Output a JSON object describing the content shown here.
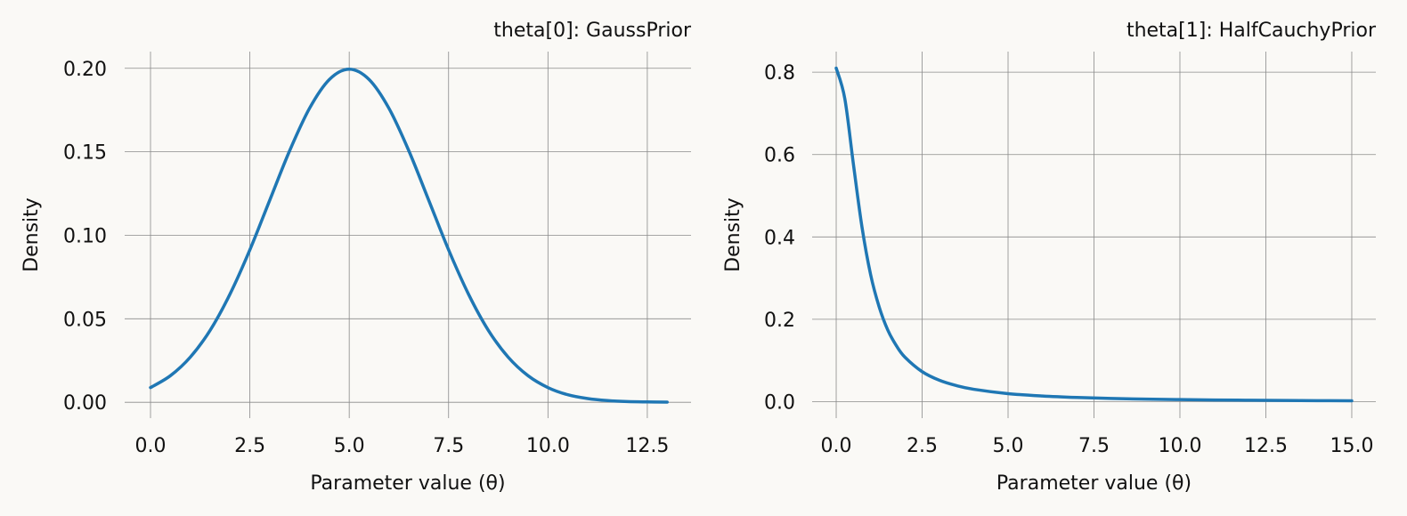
{
  "chart_data": [
    {
      "type": "line",
      "title": "theta[0]: GaussPrior",
      "xlabel": "Parameter value (θ)",
      "ylabel": "Density",
      "xlim": [
        -0.65,
        13.6
      ],
      "ylim": [
        -0.0095,
        0.21
      ],
      "xticks": [
        "0.0",
        "2.5",
        "5.0",
        "7.5",
        "10.0",
        "12.5"
      ],
      "xtick_values": [
        0,
        2.5,
        5,
        7.5,
        10,
        12.5
      ],
      "yticks": [
        "0.00",
        "0.05",
        "0.10",
        "0.15",
        "0.20"
      ],
      "ytick_values": [
        0,
        0.05,
        0.1,
        0.15,
        0.2
      ],
      "grid": true,
      "color": "#1f77b4",
      "series": [
        {
          "x": [
            0,
            0.5,
            1,
            1.5,
            2,
            2.5,
            3,
            3.5,
            4,
            4.5,
            5,
            5.5,
            6,
            6.5,
            7,
            7.5,
            8,
            8.5,
            9,
            9.5,
            10,
            10.5,
            11,
            11.5,
            12,
            12.5,
            13
          ],
          "y": [
            0.0088,
            0.0159,
            0.027,
            0.0431,
            0.0648,
            0.0913,
            0.121,
            0.1506,
            0.176,
            0.1933,
            0.1995,
            0.1933,
            0.176,
            0.1506,
            0.121,
            0.0913,
            0.0648,
            0.0431,
            0.027,
            0.0159,
            0.0088,
            0.0045,
            0.0022,
            0.001,
            0.0004,
            0.0002,
            0.0001
          ]
        }
      ]
    },
    {
      "type": "line",
      "title": "theta[1]: HalfCauchyPrior",
      "xlabel": "Parameter value (θ)",
      "ylabel": "Density",
      "xlim": [
        -0.7,
        15.7
      ],
      "ylim": [
        -0.04,
        0.85
      ],
      "xticks": [
        "0.0",
        "2.5",
        "5.0",
        "7.5",
        "10.0",
        "12.5",
        "15.0"
      ],
      "xtick_values": [
        0,
        2.5,
        5,
        7.5,
        10,
        12.5,
        15
      ],
      "yticks": [
        "0.0",
        "0.2",
        "0.4",
        "0.6",
        "0.8"
      ],
      "ytick_values": [
        0,
        0.2,
        0.4,
        0.6,
        0.8
      ],
      "grid": true,
      "color": "#1f77b4",
      "series": [
        {
          "x": [
            0,
            0.25,
            0.5,
            0.75,
            1,
            1.25,
            1.5,
            1.75,
            2,
            2.5,
            3,
            3.5,
            4,
            5,
            6,
            7,
            8,
            9,
            10,
            11,
            12,
            13,
            14,
            15
          ],
          "y": [
            0.81,
            0.736,
            0.577,
            0.424,
            0.309,
            0.23,
            0.174,
            0.136,
            0.108,
            0.0729,
            0.052,
            0.0389,
            0.0301,
            0.0195,
            0.0137,
            0.0101,
            0.0077,
            0.0061,
            0.005,
            0.0041,
            0.0035,
            0.0029,
            0.0025,
            0.0022
          ]
        }
      ]
    }
  ]
}
